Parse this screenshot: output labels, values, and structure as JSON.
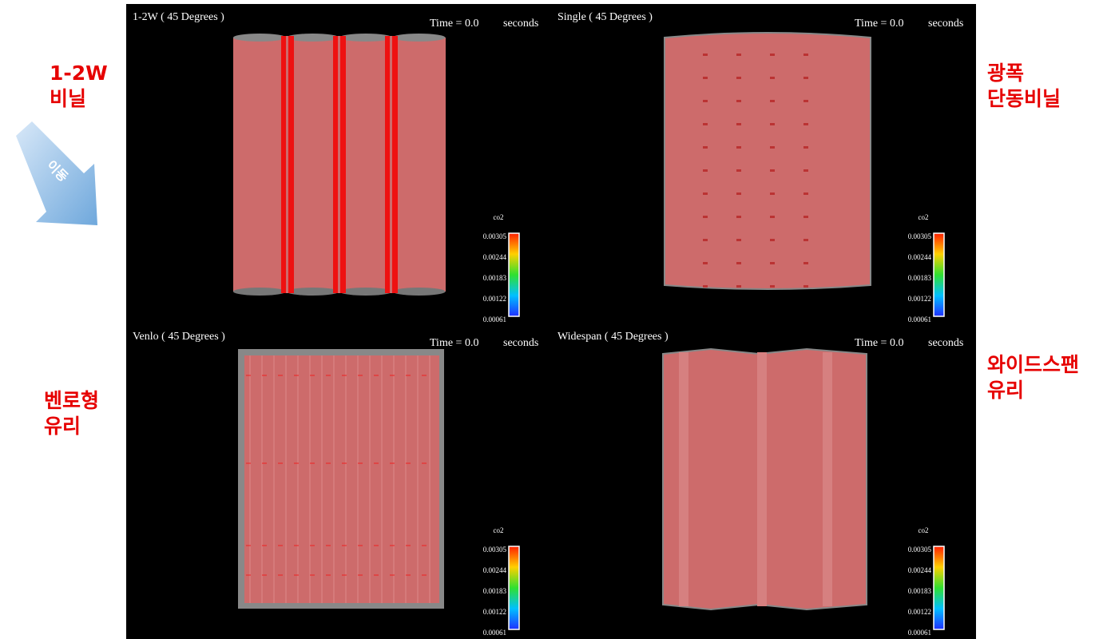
{
  "side_labels": [
    {
      "lines": [
        "1-2W",
        "비닐"
      ]
    },
    {
      "lines": [
        "광폭",
        "단동비닐"
      ]
    },
    {
      "lines": [
        "벤로형",
        "유리"
      ]
    },
    {
      "lines": [
        "와이드스팬",
        "유리"
      ]
    }
  ],
  "arrow_label": "이동",
  "panels": [
    {
      "title": "1-2W ( 45 Degrees )",
      "time": "Time = 0.0",
      "unit": "seconds",
      "legend_title": "co2",
      "legend_ticks": [
        "0.00305",
        "0.00244",
        "0.00183",
        "0.00122",
        "0.00061"
      ]
    },
    {
      "title": "Single ( 45 Degrees )",
      "time": "Time = 0.0",
      "unit": "seconds",
      "legend_title": "co2",
      "legend_ticks": [
        "0.00305",
        "0.00244",
        "0.00183",
        "0.00122",
        "0.00061"
      ]
    },
    {
      "title": "Venlo ( 45 Degrees )",
      "time": "Time = 0.0",
      "unit": "seconds",
      "legend_title": "co2",
      "legend_ticks": [
        "0.00305",
        "0.00244",
        "0.00183",
        "0.00122",
        "0.00061"
      ]
    },
    {
      "title": "Widespan ( 45 Degrees )",
      "time": "Time = 0.0",
      "unit": "seconds",
      "legend_title": "co2",
      "legend_ticks": [
        "0.00305",
        "0.00244",
        "0.00183",
        "0.00122",
        "0.00061"
      ]
    }
  ]
}
